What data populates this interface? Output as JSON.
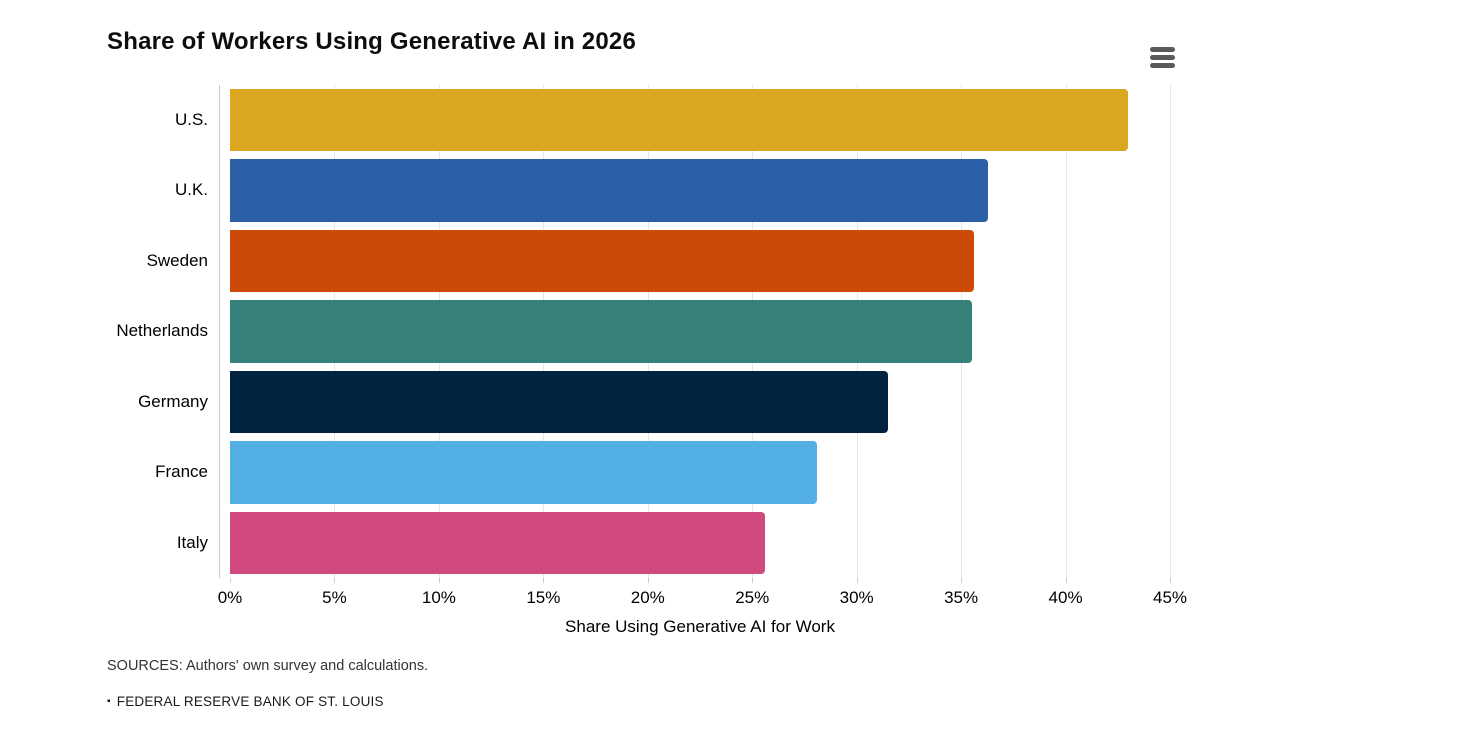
{
  "header": {
    "menu_button_label": "chart context menu"
  },
  "chart_data": {
    "type": "bar",
    "orientation": "horizontal",
    "title": "Share of Workers Using Generative AI in 2026",
    "xlabel": "Share Using Generative AI for Work",
    "ylabel": "",
    "categories": [
      "U.S.",
      "U.K.",
      "Sweden",
      "Netherlands",
      "Germany",
      "France",
      "Italy"
    ],
    "values": [
      43.0,
      36.3,
      35.6,
      35.5,
      31.5,
      28.1,
      25.6
    ],
    "bar_colors": [
      "#DBA720",
      "#2B5FA8",
      "#CC4A05",
      "#37817B",
      "#02233F",
      "#54B0E4",
      "#D04A7F"
    ],
    "xlim": [
      0,
      45
    ],
    "tick_values": [
      0,
      5,
      10,
      15,
      20,
      25,
      30,
      35,
      40,
      45
    ],
    "tick_labels": [
      "0%",
      "5%",
      "10%",
      "15%",
      "20%",
      "25%",
      "30%",
      "35%",
      "40%",
      "45%"
    ],
    "grid": true,
    "gridline_color": "#e6e6e6",
    "axis_line_color": "#cccccc",
    "legend": "none"
  },
  "footer": {
    "sources": "SOURCES: Authors' own survey and calculations.",
    "branding_bullet": "▪",
    "branding": "FEDERAL RESERVE BANK OF ST. LOUIS"
  }
}
